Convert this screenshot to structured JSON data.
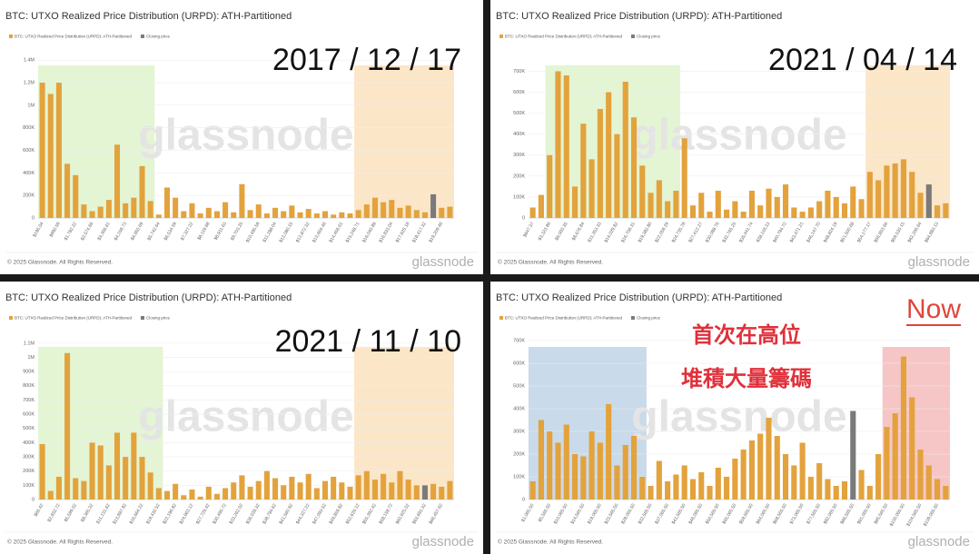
{
  "chart_data": [
    {
      "type": "bar",
      "title": "BTC: UTXO Realized Price Distribution (URPD): ATH-Partitioned",
      "annotation": "2017 / 12 / 17",
      "watermark": "glassnode",
      "footer": "© 2025 Glassnode. All Rights Reserved.",
      "logo": "glassnode",
      "categories": [
        "$196.04",
        null,
        "$990.59",
        null,
        "$1,782.22",
        null,
        "$2,574.66",
        null,
        "$3,366.61",
        null,
        "$4,158.73",
        null,
        "$4,950.69",
        null,
        "$5,742.64",
        null,
        "$6,534.59",
        null,
        "$7,327.22",
        null,
        "$8,119.68",
        null,
        "$8,911.63",
        null,
        "$9,703.25",
        null,
        "$10,495.59",
        null,
        "$11,288.04",
        null,
        "$12,080.15",
        null,
        "$12,872.32",
        null,
        "$13,664.46",
        null,
        "$14,456.61",
        null,
        "$15,248.71",
        null,
        "$16,040.89",
        null,
        "$16,833.04",
        null,
        "$17,625.18",
        null,
        "$18,417.32",
        null,
        "$19,209.46",
        null
      ],
      "series": [
        {
          "name": "BTC: UTXO Realized Price Distribution (URPD): ATH-Partitioned",
          "color": "#e3a23c",
          "values": [
            1200000,
            1100000,
            1200000,
            480000,
            380000,
            120000,
            60000,
            100000,
            160000,
            650000,
            130000,
            180000,
            460000,
            150000,
            30000,
            270000,
            180000,
            60000,
            130000,
            40000,
            90000,
            60000,
            140000,
            50000,
            300000,
            70000,
            120000,
            40000,
            90000,
            60000,
            110000,
            50000,
            80000,
            40000,
            60000,
            30000,
            50000,
            40000,
            70000,
            120000,
            180000,
            140000,
            160000,
            90000,
            110000,
            70000,
            50000,
            null,
            90000,
            100000
          ]
        },
        {
          "name": "Closing price",
          "color": "#7a7a7a",
          "values": [
            null,
            null,
            null,
            null,
            null,
            null,
            null,
            null,
            null,
            null,
            null,
            null,
            null,
            null,
            null,
            null,
            null,
            null,
            null,
            null,
            null,
            null,
            null,
            null,
            null,
            null,
            null,
            null,
            null,
            null,
            null,
            null,
            null,
            null,
            null,
            null,
            null,
            null,
            null,
            null,
            null,
            null,
            null,
            null,
            null,
            null,
            null,
            210000,
            null,
            null
          ]
        }
      ],
      "ylim": [
        0,
        1450000
      ],
      "yticks": [
        0,
        {
          "value": 200000,
          "label": "200K"
        },
        {
          "value": 400000,
          "label": "400K"
        },
        {
          "value": 600000,
          "label": "600K"
        },
        {
          "value": 800000,
          "label": "800K"
        },
        {
          "value": 1000000,
          "label": "1M"
        },
        {
          "value": 1200000,
          "label": "1.2M"
        },
        {
          "value": 1400000,
          "label": "1.4M"
        }
      ]
    },
    {
      "type": "bar",
      "title": "BTC: UTXO Realized Price Distribution (URPD): ATH-Partitioned",
      "annotation": "2021 / 04 / 14",
      "watermark": "glassnode",
      "footer": "© 2025 Glassnode. All Rights Reserved.",
      "logo": "glassnode",
      "categories": [
        "$647.37",
        null,
        "$3,323.86",
        null,
        "$6,000.35",
        null,
        "$8,676.84",
        null,
        "$11,353.33",
        null,
        "$14,029.82",
        null,
        "$16,706.31",
        null,
        "$19,382.80",
        null,
        "$22,059.29",
        null,
        "$24,735.78",
        null,
        "$27,412.27",
        null,
        "$30,088.76",
        null,
        "$32,765.25",
        null,
        "$35,441.74",
        null,
        "$38,118.23",
        null,
        "$40,794.72",
        null,
        "$43,471.21",
        null,
        "$46,147.70",
        null,
        "$48,824.19",
        null,
        "$51,500.68",
        null,
        "$54,177.17",
        null,
        "$56,853.66",
        null,
        "$59,530.15",
        null,
        "$62,206.64",
        null,
        "$64,883.13",
        null
      ],
      "series": [
        {
          "name": "BTC: UTXO Realized Price Distribution (URPD): ATH-Partitioned",
          "color": "#e3a23c",
          "values": [
            50000,
            110000,
            300000,
            700000,
            680000,
            150000,
            450000,
            280000,
            520000,
            600000,
            400000,
            650000,
            480000,
            250000,
            120000,
            180000,
            80000,
            130000,
            380000,
            60000,
            120000,
            30000,
            130000,
            40000,
            80000,
            30000,
            130000,
            60000,
            140000,
            100000,
            160000,
            50000,
            30000,
            50000,
            80000,
            130000,
            100000,
            70000,
            150000,
            90000,
            220000,
            180000,
            250000,
            260000,
            280000,
            220000,
            120000,
            null,
            60000,
            70000
          ]
        },
        {
          "name": "Closing price",
          "color": "#7a7a7a",
          "values": [
            null,
            null,
            null,
            null,
            null,
            null,
            null,
            null,
            null,
            null,
            null,
            null,
            null,
            null,
            null,
            null,
            null,
            null,
            null,
            null,
            null,
            null,
            null,
            null,
            null,
            null,
            null,
            null,
            null,
            null,
            null,
            null,
            null,
            null,
            null,
            null,
            null,
            null,
            null,
            null,
            null,
            null,
            null,
            null,
            null,
            null,
            null,
            160000,
            null,
            null
          ]
        }
      ],
      "ylim": [
        0,
        780000
      ],
      "yticks": [
        0,
        {
          "value": 100000,
          "label": "100K"
        },
        {
          "value": 200000,
          "label": "200K"
        },
        {
          "value": 300000,
          "label": "300K"
        },
        {
          "value": 400000,
          "label": "400K"
        },
        {
          "value": 500000,
          "label": "500K"
        },
        {
          "value": 600000,
          "label": "600K"
        },
        {
          "value": 700000,
          "label": "700K"
        }
      ]
    },
    {
      "type": "bar",
      "title": "BTC: UTXO Realized Price Distribution (URPD): ATH-Partitioned",
      "annotation": "2021 / 11 / 10",
      "watermark": "glassnode",
      "footer": "© 2025 Glassnode. All Rights Reserved.",
      "logo": "glassnode",
      "categories": [
        "$66.42",
        null,
        "$2,832.72",
        null,
        "$5,599.02",
        null,
        "$8,365.32",
        null,
        "$11,131.62",
        null,
        "$13,897.92",
        null,
        "$16,664.22",
        null,
        "$19,430.52",
        null,
        "$22,196.82",
        null,
        "$24,963.12",
        null,
        "$27,729.42",
        null,
        "$30,495.72",
        null,
        "$33,262.02",
        null,
        "$36,028.32",
        null,
        "$38,794.62",
        null,
        "$41,560.92",
        null,
        "$44,327.22",
        null,
        "$47,093.52",
        null,
        "$49,859.82",
        null,
        "$52,626.12",
        null,
        "$55,392.42",
        null,
        "$58,158.72",
        null,
        "$60,925.02",
        null,
        "$63,691.32",
        null,
        "$66,457.62",
        null
      ],
      "series": [
        {
          "name": "BTC: UTXO Realized Price Distribution (URPD): ATH-Partitioned",
          "color": "#e3a23c",
          "values": [
            390000,
            60000,
            160000,
            1030000,
            150000,
            130000,
            400000,
            380000,
            240000,
            470000,
            300000,
            470000,
            300000,
            190000,
            80000,
            60000,
            110000,
            30000,
            70000,
            20000,
            90000,
            40000,
            80000,
            120000,
            170000,
            90000,
            130000,
            200000,
            150000,
            100000,
            160000,
            120000,
            180000,
            80000,
            130000,
            160000,
            120000,
            90000,
            170000,
            200000,
            140000,
            180000,
            120000,
            200000,
            140000,
            100000,
            null,
            110000,
            90000,
            130000
          ]
        },
        {
          "name": "Closing price",
          "color": "#7a7a7a",
          "values": [
            null,
            null,
            null,
            null,
            null,
            null,
            null,
            null,
            null,
            null,
            null,
            null,
            null,
            null,
            null,
            null,
            null,
            null,
            null,
            null,
            null,
            null,
            null,
            null,
            null,
            null,
            null,
            null,
            null,
            null,
            null,
            null,
            null,
            null,
            null,
            null,
            null,
            null,
            null,
            null,
            null,
            null,
            null,
            null,
            null,
            null,
            100000,
            null,
            null,
            null
          ]
        }
      ],
      "ylim": [
        0,
        1150000
      ],
      "yticks": [
        0,
        {
          "value": 100000,
          "label": "100K"
        },
        {
          "value": 200000,
          "label": "200K"
        },
        {
          "value": 300000,
          "label": "300K"
        },
        {
          "value": 400000,
          "label": "400K"
        },
        {
          "value": 500000,
          "label": "500K"
        },
        {
          "value": 600000,
          "label": "600K"
        },
        {
          "value": 700000,
          "label": "700K"
        },
        {
          "value": 800000,
          "label": "800K"
        },
        {
          "value": 900000,
          "label": "900K"
        },
        {
          "value": 1000000,
          "label": "1M"
        },
        {
          "value": 1100000,
          "label": "1.1M"
        }
      ]
    },
    {
      "type": "bar",
      "title": "BTC: UTXO Realized Price Distribution (URPD): ATH-Partitioned",
      "annotation": "Now",
      "notes": [
        "首次在高位",
        "堆積大量籌碼"
      ],
      "watermark": "glassnode",
      "footer": "© 2025 Glassnode. All Rights Reserved.",
      "logo": "glassnode",
      "categories": [
        "$1,065.50",
        null,
        "$5,565.50",
        null,
        "$10,065.50",
        null,
        "$14,565.50",
        null,
        "$19,065.50",
        null,
        "$23,565.50",
        null,
        "$28,065.50",
        null,
        "$32,565.50",
        null,
        "$37,065.50",
        null,
        "$41,565.50",
        null,
        "$46,065.50",
        null,
        "$50,565.50",
        null,
        "$55,065.50",
        null,
        "$59,565.50",
        null,
        "$64,065.50",
        null,
        "$68,565.50",
        null,
        "$73,065.50",
        null,
        "$77,565.50",
        null,
        "$82,065.50",
        null,
        "$86,565.50",
        null,
        "$91,065.50",
        null,
        "$95,565.50",
        null,
        "$100,065.50",
        null,
        "$104,565.50",
        null,
        "$109,065.50",
        null
      ],
      "series": [
        {
          "name": "BTC: UTXO Realized Price Distribution (URPD): ATH-Partitioned",
          "color": "#e3a23c",
          "values": [
            80000,
            350000,
            300000,
            250000,
            330000,
            200000,
            190000,
            300000,
            250000,
            420000,
            150000,
            240000,
            280000,
            100000,
            60000,
            170000,
            80000,
            110000,
            150000,
            90000,
            120000,
            60000,
            140000,
            100000,
            180000,
            220000,
            260000,
            290000,
            360000,
            280000,
            200000,
            150000,
            250000,
            100000,
            160000,
            90000,
            60000,
            80000,
            null,
            130000,
            60000,
            200000,
            320000,
            380000,
            630000,
            450000,
            220000,
            150000,
            90000,
            60000
          ]
        },
        {
          "name": "Closing price",
          "color": "#7a7a7a",
          "values": [
            null,
            null,
            null,
            null,
            null,
            null,
            null,
            null,
            null,
            null,
            null,
            null,
            null,
            null,
            null,
            null,
            null,
            null,
            null,
            null,
            null,
            null,
            null,
            null,
            null,
            null,
            null,
            null,
            null,
            null,
            null,
            null,
            null,
            null,
            null,
            null,
            null,
            null,
            390000,
            null,
            null,
            null,
            null,
            null,
            null,
            null,
            null,
            null,
            null,
            null
          ]
        }
      ],
      "ylim": [
        0,
        720000
      ],
      "yticks": [
        0,
        {
          "value": 100000,
          "label": "100K"
        },
        {
          "value": 200000,
          "label": "200K"
        },
        {
          "value": 300000,
          "label": "300K"
        },
        {
          "value": 400000,
          "label": "400K"
        },
        {
          "value": 500000,
          "label": "500K"
        },
        {
          "value": 600000,
          "label": "600K"
        },
        {
          "value": 700000,
          "label": "700K"
        }
      ]
    }
  ]
}
